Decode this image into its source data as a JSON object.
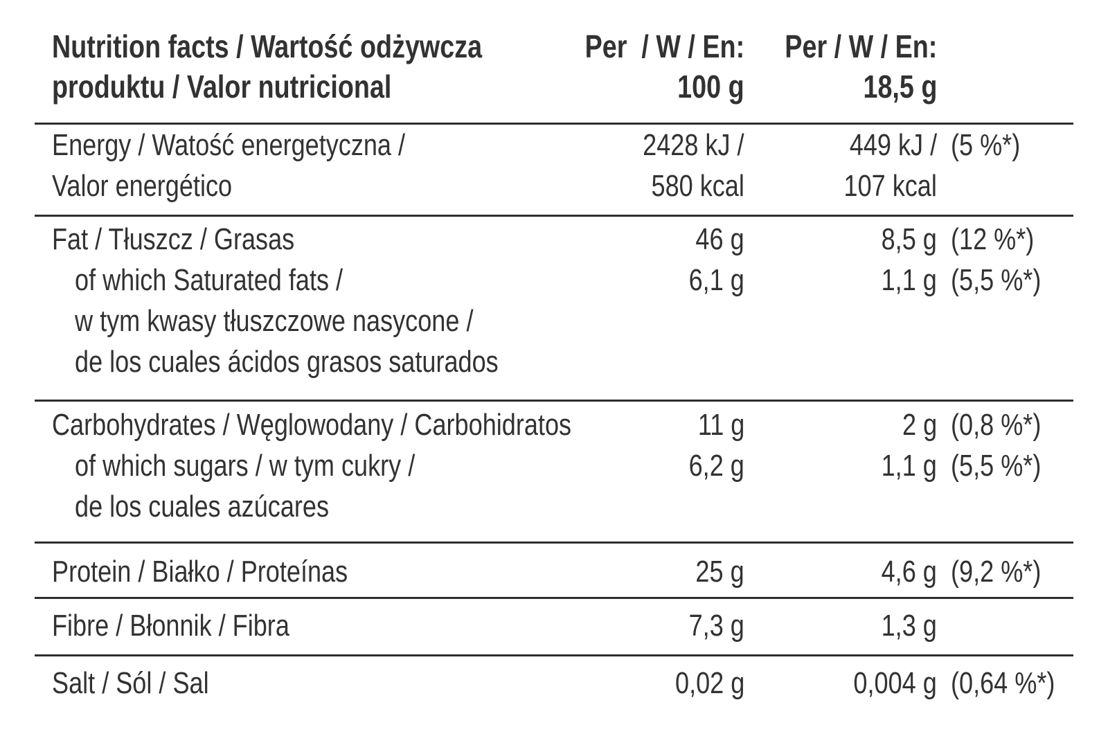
{
  "colors": {
    "text": "#323232",
    "rule": "#2e2e2e",
    "background": "#ffffff"
  },
  "table": {
    "header": {
      "title_line1": "Nutrition facts / Wartość odżywcza",
      "title_line2": "produktu / Valor nutricional",
      "per100_line1": "Per  / W / En:",
      "per100_line2": "100 g",
      "per185_line1": "Per / W / En:",
      "per185_line2": "18,5 g"
    },
    "rows": {
      "energy": {
        "label_lines": [
          "Energy / Watość energetyczna /",
          "Valor energético"
        ],
        "per100_lines": [
          "2428 kJ /",
          "580 kcal"
        ],
        "per185_lines": [
          "449 kJ /",
          "107 kcal"
        ],
        "pct_lines": [
          "(5 %*)"
        ]
      },
      "fat": {
        "label_lines": [
          "Fat / Tłuszcz / Grasas",
          "of which Saturated fats /",
          "w tym kwasy tłuszczowe nasycone /",
          "de los cuales ácidos grasos saturados"
        ],
        "per100_lines": [
          "46 g",
          "6,1 g"
        ],
        "per185_lines": [
          "8,5 g",
          "1,1 g"
        ],
        "pct_lines": [
          "(12 %*)",
          "(5,5 %*)"
        ]
      },
      "carbohydrates": {
        "label_lines": [
          "Carbohydrates / Węglowodany / Carbohidratos",
          "of which sugars / w tym cukry /",
          "de los cuales azúcares"
        ],
        "per100_lines": [
          "11 g",
          "6,2 g"
        ],
        "per185_lines": [
          "2 g",
          "1,1 g"
        ],
        "pct_lines": [
          "(0,8 %*)",
          "(5,5 %*)"
        ]
      },
      "protein": {
        "label_lines": [
          "Protein / Białko / Proteínas"
        ],
        "per100_lines": [
          "25 g"
        ],
        "per185_lines": [
          "4,6 g"
        ],
        "pct_lines": [
          "(9,2 %*)"
        ]
      },
      "fibre": {
        "label_lines": [
          "Fibre / Błonnik / Fibra"
        ],
        "per100_lines": [
          "7,3 g"
        ],
        "per185_lines": [
          "1,3 g"
        ],
        "pct_lines": []
      },
      "salt": {
        "label_lines": [
          "Salt / Sól / Sal"
        ],
        "per100_lines": [
          "0,02 g"
        ],
        "per185_lines": [
          "0,004 g"
        ],
        "pct_lines": [
          "(0,64 %*)"
        ]
      }
    }
  }
}
